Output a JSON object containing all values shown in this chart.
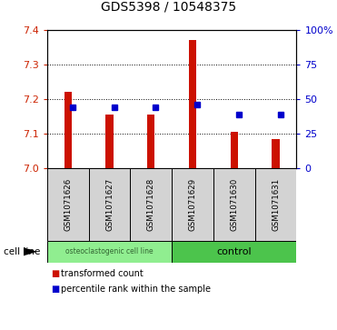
{
  "title": "GDS5398 / 10548375",
  "samples": [
    "GSM1071626",
    "GSM1071627",
    "GSM1071628",
    "GSM1071629",
    "GSM1071630",
    "GSM1071631"
  ],
  "red_values": [
    7.22,
    7.155,
    7.155,
    7.37,
    7.105,
    7.085
  ],
  "blue_values": [
    7.175,
    7.175,
    7.175,
    7.185,
    7.155,
    7.155
  ],
  "ylim": [
    7.0,
    7.4
  ],
  "ylim_right": [
    0,
    100
  ],
  "yticks_left": [
    7.0,
    7.1,
    7.2,
    7.3,
    7.4
  ],
  "yticks_right": [
    0,
    25,
    50,
    75,
    100
  ],
  "ytick_labels_right": [
    "0",
    "25",
    "50",
    "75",
    "100%"
  ],
  "grid_lines": [
    7.1,
    7.2,
    7.3
  ],
  "group1_label": "osteoclastogenic cell line",
  "group2_label": "control",
  "group1_color": "#90ee90",
  "group2_color": "#4cc44c",
  "bar_color_red": "#cc1100",
  "bar_color_blue": "#0000cc",
  "bar_width": 0.18,
  "cell_line_label": "cell line",
  "legend_red": "transformed count",
  "legend_blue": "percentile rank within the sample",
  "label_box_color": "#d3d3d3",
  "tick_color_left": "#cc2200",
  "tick_color_right": "#0000cc",
  "title_fontsize": 10
}
